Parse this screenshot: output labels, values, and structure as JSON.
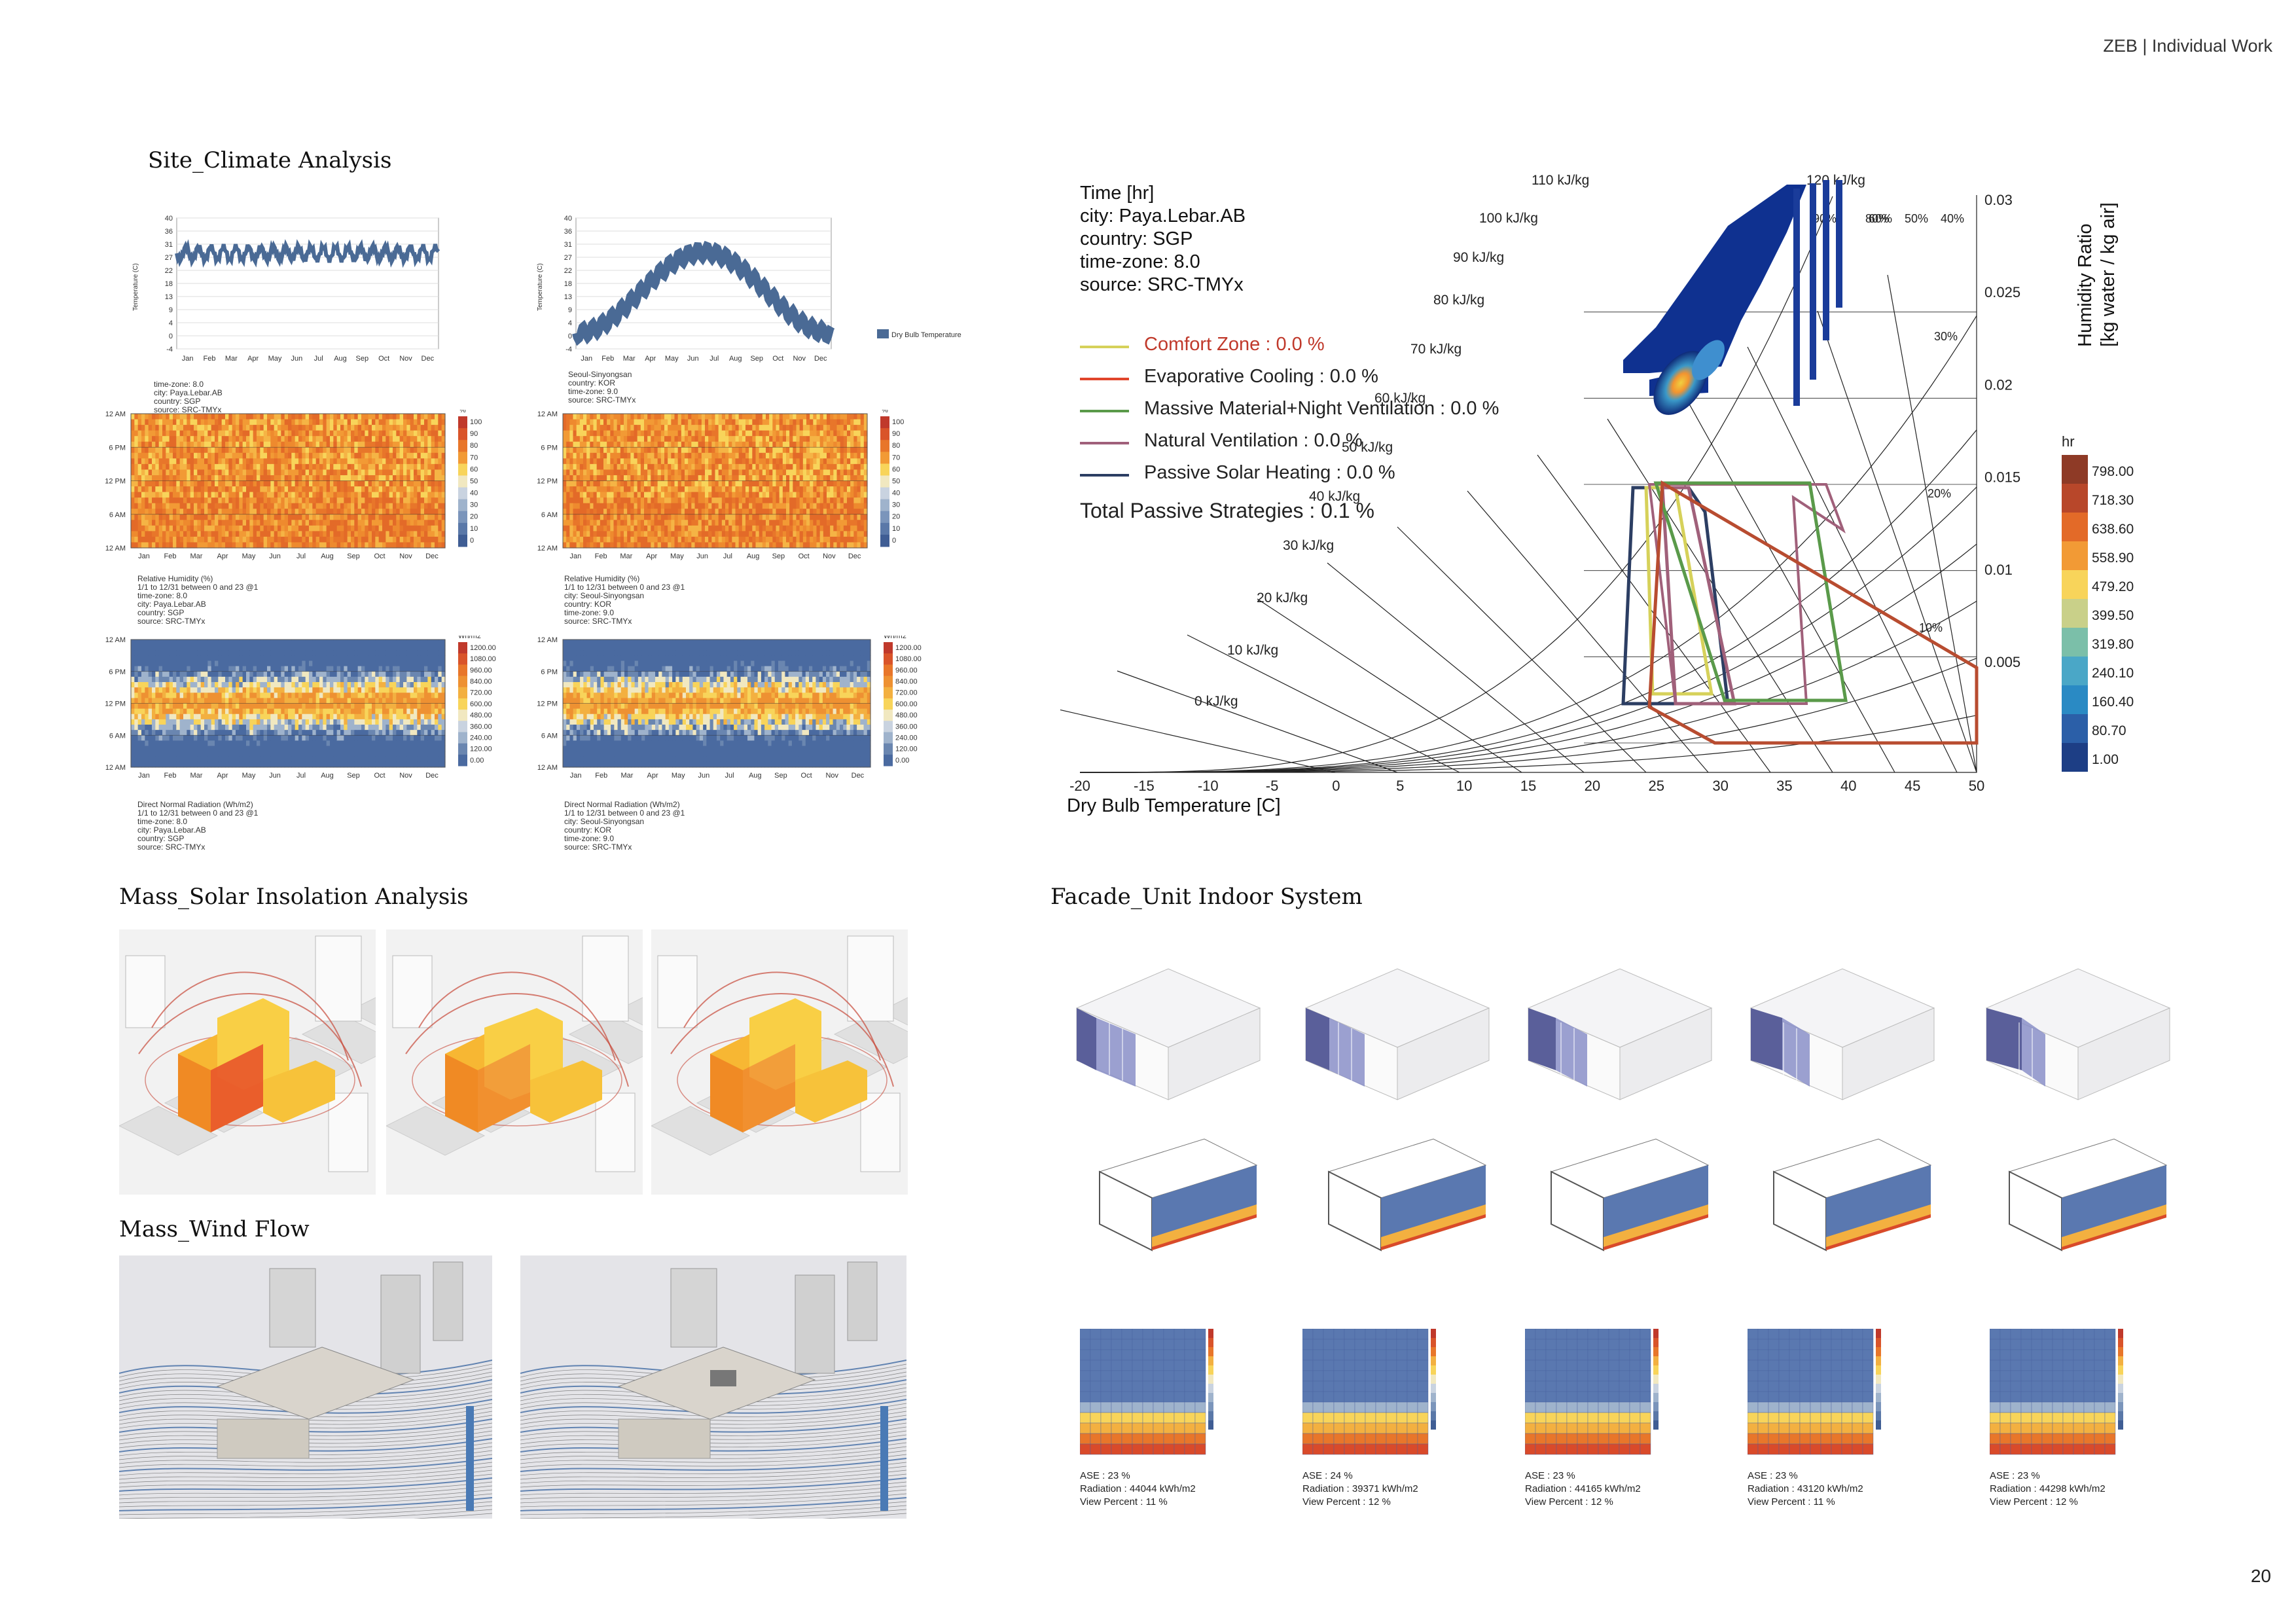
{
  "header": {
    "project": "ZEB",
    "separator": "|",
    "section": "Individual Work"
  },
  "page_number": "20",
  "titles": {
    "site_climate": "Site_Climate Analysis",
    "mass_solar": "Mass_Solar Insolation Analysis",
    "mass_wind": "Mass_Wind Flow",
    "facade": "Facade_Unit Indoor System"
  },
  "months": [
    "Jan",
    "Feb",
    "Mar",
    "Apr",
    "May",
    "Jun",
    "Jul",
    "Aug",
    "Sep",
    "Oct",
    "Nov",
    "Dec"
  ],
  "temp_charts": {
    "y_ticks": [
      "40",
      "36",
      "31",
      "27",
      "22",
      "18",
      "13",
      "9",
      "4",
      "0",
      "-4"
    ],
    "y_label": "Temperature (C)",
    "legend": "Dry Bulb Temperature",
    "left_caption": [
      "time-zone: 8.0",
      "city: Paya.Lebar.AB",
      "country: SGP",
      "source: SRC-TMYx"
    ],
    "right_caption": [
      "Seoul-Sinyongsan",
      "country: KOR",
      "time-zone: 9.0",
      "source: SRC-TMYx"
    ]
  },
  "heatmap_time_ticks": [
    "12 AM",
    "6 PM",
    "12 PM",
    "6 AM",
    "12 AM"
  ],
  "rh_charts": {
    "unit": "%",
    "scale": [
      "100",
      "90",
      "80",
      "70",
      "60",
      "50",
      "40",
      "30",
      "20",
      "10",
      "0"
    ],
    "left_caption": [
      "Relative Humidity (%)",
      "1/1 to 12/31 between 0 and 23 @1",
      "time-zone: 8.0",
      "city: Paya.Lebar.AB",
      "country: SGP",
      "source: SRC-TMYx"
    ],
    "right_caption": [
      "Relative Humidity (%)",
      "1/1 to 12/31 between 0 and 23 @1",
      "city: Seoul-Sinyongsan",
      "country: KOR",
      "time-zone: 9.0",
      "source: SRC-TMYx"
    ]
  },
  "rad_charts": {
    "unit": "Wh/m2",
    "scale": [
      "1200.00",
      "1080.00",
      "960.00",
      "840.00",
      "720.00",
      "600.00",
      "480.00",
      "360.00",
      "240.00",
      "120.00",
      "0.00"
    ],
    "left_caption": [
      "Direct Normal Radiation (Wh/m2)",
      "1/1 to 12/31 between 0 and 23 @1",
      "time-zone: 8.0",
      "city: Paya.Lebar.AB",
      "country: SGP",
      "source: SRC-TMYx"
    ],
    "right_caption": [
      "Direct Normal Radiation (Wh/m2)",
      "1/1 to 12/31 between 0 and 23 @1",
      "city: Seoul-Sinyongsan",
      "country: KOR",
      "time-zone: 9.0",
      "source: SRC-TMYx"
    ]
  },
  "psychro": {
    "info": [
      "Time [hr]",
      "city: Paya.Lebar.AB",
      "country: SGP",
      "time-zone: 8.0",
      "source: SRC-TMYx"
    ],
    "strategies": [
      {
        "label": "Comfort Zone  :  0.0 %",
        "color": "#d6d15a",
        "text_color": "#c0392b"
      },
      {
        "label": "Evaporative Cooling  :  0.0 %",
        "color": "#e0452b",
        "text_color": "#222"
      },
      {
        "label": "Massive Material+Night Ventilation : 0.0 %",
        "color": "#5a9a4a",
        "text_color": "#222"
      },
      {
        "label": "Natural Ventilation  :  0.0 %",
        "color": "#a0607a",
        "text_color": "#222"
      },
      {
        "label": "Passive Solar Heating  :  0.0 %",
        "color": "#2c3e63",
        "text_color": "#222"
      }
    ],
    "total": "Total Passive Strategies  :  0.1 %",
    "x_ticks": [
      "-20",
      "-15",
      "-10",
      "-5",
      "0",
      "5",
      "10",
      "15",
      "20",
      "25",
      "30",
      "35",
      "40",
      "45",
      "50"
    ],
    "x_label": "Dry Bulb Temperature [C]",
    "y_ticks": [
      "0.03",
      "0.025",
      "0.02",
      "0.015",
      "0.01",
      "0.005"
    ],
    "y_label": [
      "Humidity Ratio",
      "[kg water / kg air]"
    ],
    "enthalpy": [
      "0 kJ/kg",
      "10 kJ/kg",
      "20 kJ/kg",
      "30 kJ/kg",
      "40 kJ/kg",
      "50 kJ/kg",
      "60 kJ/kg",
      "70 kJ/kg",
      "80 kJ/kg",
      "90 kJ/kg",
      "100 kJ/kg",
      "110 kJ/kg",
      "120 kJ/kg"
    ],
    "rh_labels": [
      "90%",
      "80%",
      "60%",
      "50%",
      "40%",
      "30%",
      "20%",
      "10%"
    ],
    "legend_unit": "hr",
    "legend_values": [
      "798.00",
      "718.30",
      "638.60",
      "558.90",
      "479.20",
      "399.50",
      "319.80",
      "240.10",
      "160.40",
      "80.70",
      "1.00"
    ]
  },
  "facade_units": [
    {
      "ase": "ASE : 23 %",
      "radiation": "Radiation : 44044 kWh/m2",
      "view": "View Percent : 11 %"
    },
    {
      "ase": "ASE : 24 %",
      "radiation": "Radiation : 39371 kWh/m2",
      "view": "View Percent : 12 %"
    },
    {
      "ase": "ASE : 23 %",
      "radiation": "Radiation : 44165 kWh/m2",
      "view": "View Percent : 12 %"
    },
    {
      "ase": "ASE : 23 %",
      "radiation": "Radiation : 43120 kWh/m2",
      "view": "View Percent : 11 %"
    },
    {
      "ase": "ASE : 23 %",
      "radiation": "Radiation : 44298 kWh/m2",
      "view": "View Percent : 12 %"
    }
  ],
  "colors": {
    "temp_line": "#4a6a95",
    "heat_blue": "#4a6aa0",
    "heat_orange": "#e8762a",
    "heat_yellow": "#f8d45a"
  }
}
